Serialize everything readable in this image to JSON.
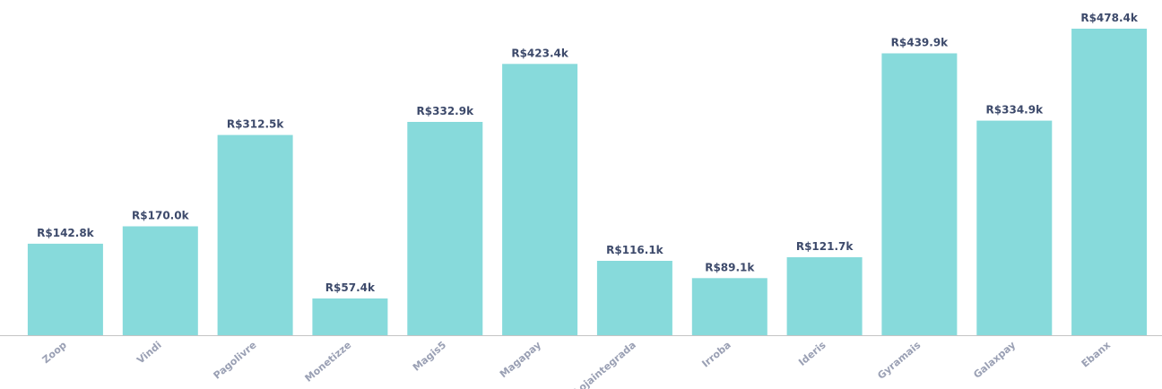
{
  "chart_data": {
    "type": "bar",
    "categories": [
      "Zoop",
      "Vindi",
      "Pagolivre",
      "Monetizze",
      "Magis5",
      "Magapay",
      "Lojaintegrada",
      "Irroba",
      "Ideris",
      "Gyramais",
      "Galaxpay",
      "Ebanx"
    ],
    "values": [
      142.8,
      170.0,
      312.5,
      57.4,
      332.9,
      423.4,
      116.1,
      89.1,
      121.7,
      439.9,
      334.9,
      478.4
    ],
    "data_labels": [
      "R$142.8k",
      "R$170.0k",
      "R$312.5k",
      "R$57.4k",
      "R$332.9k",
      "R$423.4k",
      "R$116.1k",
      "R$89.1k",
      "R$121.7k",
      "R$439.9k",
      "R$334.9k",
      "R$478.4k"
    ],
    "title": "",
    "xlabel": "",
    "ylabel": "",
    "ylim": [
      0,
      478.4
    ],
    "grid": false,
    "legend": "none",
    "colors": {
      "bar": "#87dadb",
      "axis": "#c4c4c4",
      "data_label": "#3d4a6b",
      "category_label": "#9aa0b4"
    }
  }
}
